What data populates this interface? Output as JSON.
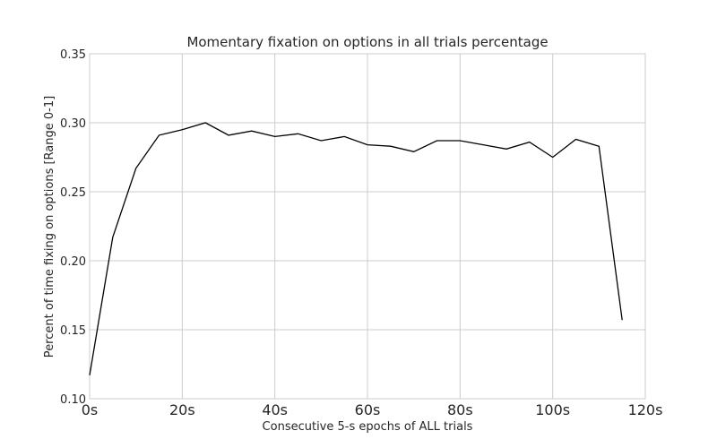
{
  "chart_data": {
    "type": "line",
    "title": "Momentary fixation on options in all trials percentage",
    "xlabel": "Consecutive 5-s epochs of ALL trials",
    "ylabel": "Percent of time fixing on options [Range 0-1]",
    "xlim": [
      0,
      120
    ],
    "ylim": [
      0.1,
      0.35
    ],
    "x_ticks": [
      0,
      20,
      40,
      60,
      80,
      100,
      120
    ],
    "x_tick_labels": [
      "0s",
      "20s",
      "40s",
      "60s",
      "80s",
      "100s",
      "120s"
    ],
    "y_ticks": [
      0.1,
      0.15,
      0.2,
      0.25,
      0.3,
      0.35
    ],
    "y_tick_labels": [
      "0.10",
      "0.15",
      "0.20",
      "0.25",
      "0.30",
      "0.35"
    ],
    "grid": true,
    "line_color": "#000000",
    "grid_color": "#cccccc",
    "series": [
      {
        "x": [
          0,
          5,
          10,
          15,
          20,
          25,
          30,
          35,
          40,
          45,
          50,
          55,
          60,
          65,
          70,
          75,
          80,
          85,
          90,
          95,
          100,
          105,
          110,
          115
        ],
        "values": [
          0.117,
          0.217,
          0.267,
          0.291,
          0.295,
          0.3,
          0.291,
          0.294,
          0.29,
          0.292,
          0.287,
          0.29,
          0.284,
          0.283,
          0.279,
          0.287,
          0.287,
          0.284,
          0.281,
          0.286,
          0.275,
          0.288,
          0.283,
          0.157
        ]
      }
    ]
  }
}
